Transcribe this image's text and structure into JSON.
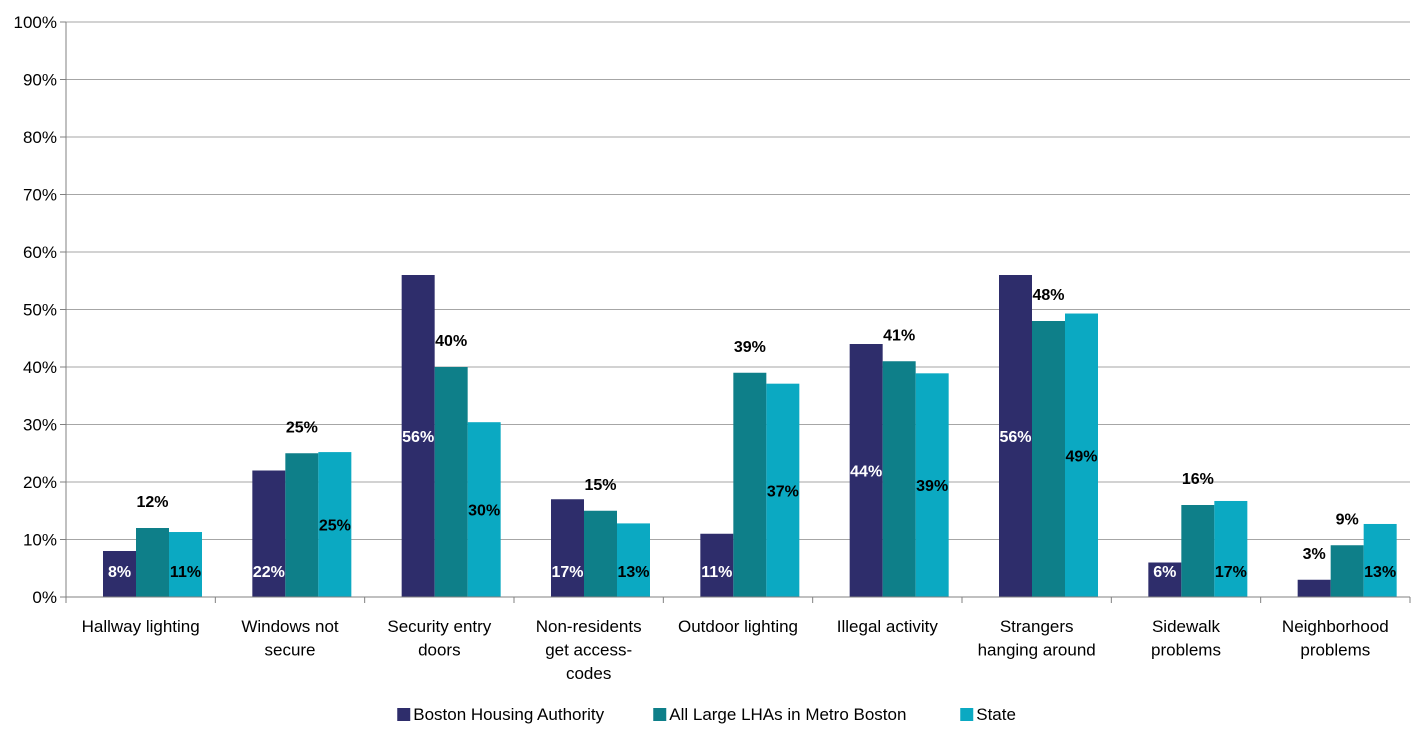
{
  "chart_data": {
    "type": "bar",
    "title": "",
    "xlabel": "",
    "ylabel": "",
    "ylim": [
      0,
      100
    ],
    "yticks": [
      "0%",
      "10%",
      "20%",
      "30%",
      "40%",
      "50%",
      "60%",
      "70%",
      "80%",
      "90%",
      "100%"
    ],
    "categories": [
      [
        "Hallway lighting"
      ],
      [
        "Windows not",
        "secure"
      ],
      [
        "Security entry",
        "doors"
      ],
      [
        "Non-residents",
        "get access-",
        "codes"
      ],
      [
        "Outdoor lighting"
      ],
      [
        "Illegal activity"
      ],
      [
        "Strangers",
        "hanging around"
      ],
      [
        "Sidewalk",
        "problems"
      ],
      [
        "Neighborhood",
        "problems"
      ]
    ],
    "series": [
      {
        "name": "Boston Housing Authority",
        "color": "#2e2d6b",
        "values": [
          8,
          22,
          56,
          17,
          11,
          44,
          56,
          6,
          3
        ],
        "labels": [
          "8%",
          "22%",
          "56%",
          "17%",
          "11%",
          "44%",
          "56%",
          "6%",
          "3%"
        ],
        "label_positions": [
          "inside-base",
          "inside-base",
          "inside-mid",
          "inside-base",
          "inside-base",
          "inside-mid",
          "inside-mid",
          "inside-base",
          "above"
        ]
      },
      {
        "name": "All Large LHAs in Metro Boston",
        "color": "#0e7f89",
        "values": [
          12,
          25,
          40,
          15,
          39,
          41,
          48,
          16,
          9
        ],
        "labels": [
          "12%",
          "25%",
          "40%",
          "15%",
          "39%",
          "41%",
          "48%",
          "16%",
          "9%"
        ],
        "label_positions": [
          "above",
          "above",
          "above",
          "above",
          "above",
          "above",
          "above",
          "above",
          "above"
        ]
      },
      {
        "name": "State",
        "color": "#0ba9c2",
        "values": [
          11.3,
          25.2,
          30.4,
          12.8,
          37.1,
          38.9,
          49.3,
          16.7,
          12.7
        ],
        "labels": [
          "11%",
          "25%",
          "30%",
          "13%",
          "37%",
          "39%",
          "49%",
          "17%",
          "13%"
        ],
        "label_positions": [
          "inside-base",
          "inside-mid",
          "inside-mid",
          "inside-base",
          "inside-mid",
          "inside-mid",
          "inside-mid",
          "inside-base",
          "inside-base"
        ]
      }
    ],
    "legend": {
      "position": "bottom"
    },
    "grid": true
  }
}
